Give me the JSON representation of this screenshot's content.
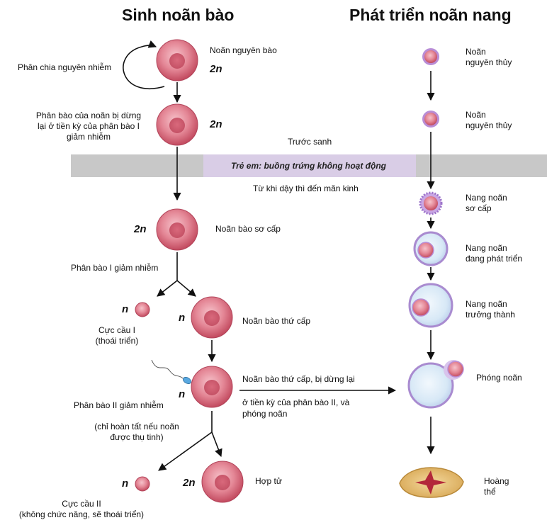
{
  "titles": {
    "oogenesis": "Sinh noãn bào",
    "folliculogenesis": "Phát triển noãn nang"
  },
  "band": {
    "before_birth": "Trước sanh",
    "childhood": "Trẻ em: buồng trứng không hoạt động",
    "puberty": "Từ khi dậy thì đến mãn kinh"
  },
  "oogenesis": {
    "mitosis_label": "Phân chia nguyên  nhiễm",
    "oogonium": "Noãn nguyên bào",
    "arrest_prophase": [
      "Phân bào của noãn bị dừng",
      "lại ở tiền kỳ của phân bào I",
      "giảm nhiễm"
    ],
    "primary_oocyte": "Noãn bào sơ cấp",
    "meiosis_1": "Phân bào I giảm nhiễm",
    "polar_body_1": [
      "Cực cầu I",
      "(thoái triển)"
    ],
    "secondary_oocyte": "Noãn bào thứ cấp",
    "secondary_arrested": [
      "Noãn bào thứ cấp, bị dừng lại",
      "ở tiền kỳ của phân bào II, và",
      "phóng  noãn"
    ],
    "meiosis_2": "Phân bào II giảm nhiễm",
    "meiosis_2_note": [
      "(chỉ hoàn tất nếu noãn",
      "được thụ tinh)"
    ],
    "zygote": "Hợp tử",
    "polar_body_2": [
      "Cực cầu   II",
      "(không chức năng, sẽ thoái triển)"
    ]
  },
  "ploidy": {
    "diploid": "2n",
    "haploid": "n"
  },
  "folliculogenesis": {
    "primordial_1": [
      "Noãn",
      "nguyên thủy"
    ],
    "primordial_2": [
      "Noãn",
      "nguyên thủy"
    ],
    "primary_follicle": [
      "Nang noãn",
      "sơ cấp"
    ],
    "developing_follicle": [
      "Nang noãn",
      "đang phát triển"
    ],
    "mature_follicle": [
      "Nang noãn",
      "trưởng thành"
    ],
    "ovulation": "Phóng noãn",
    "corpus_luteum": [
      "Hoàng",
      "thể"
    ]
  },
  "colors": {
    "cell": "#e07b8a",
    "cell_dark": "#c85064",
    "band_gray": "#c8c8c8",
    "band_purple": "#d9cde6",
    "follicle_blue": "#cfe3f3",
    "follicle_border": "#a98bd0",
    "corpus_luteum": "#e8c27a",
    "corpus_center": "#b3283a"
  }
}
